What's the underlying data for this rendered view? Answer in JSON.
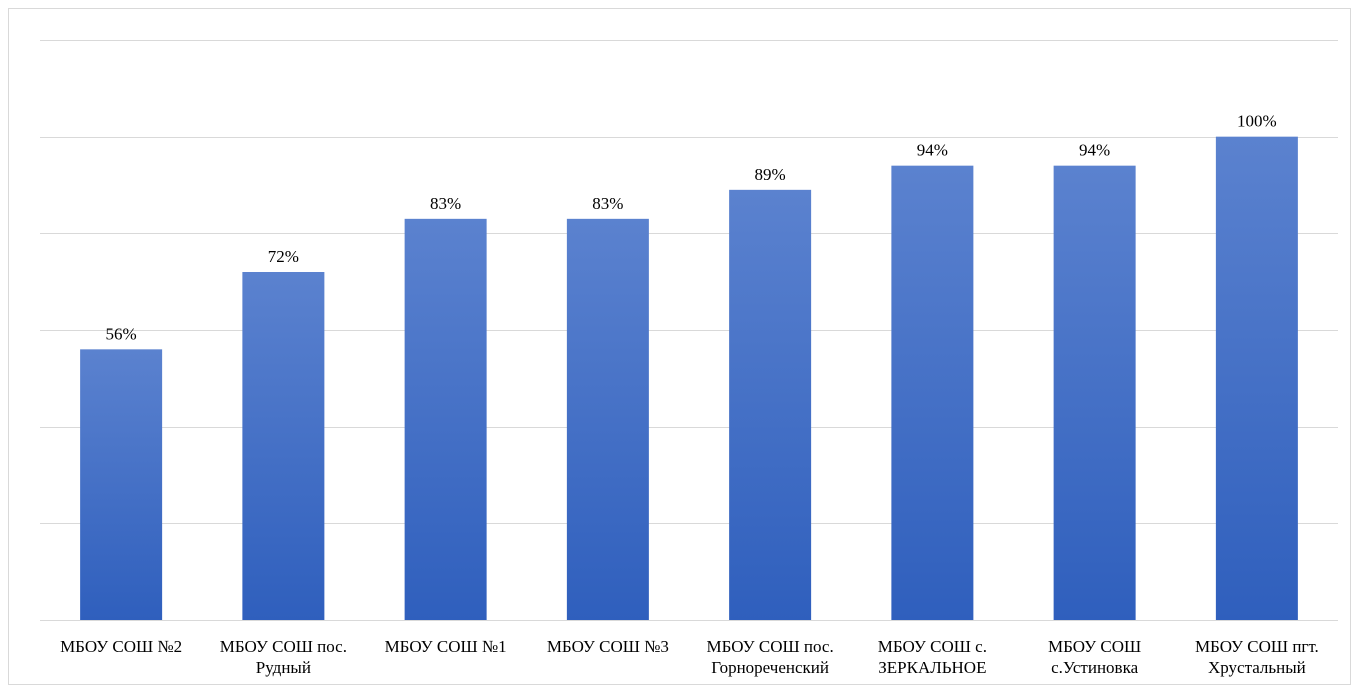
{
  "chart_data": {
    "type": "bar",
    "title": "",
    "xlabel": "",
    "ylabel": "",
    "ylim": [
      0,
      120
    ],
    "grid": true,
    "legend": "none",
    "y_axis_labels_visible": false,
    "bar_color_top": "#5b82cf",
    "bar_color_bottom": "#2f5fbd",
    "categories": [
      [
        "МБОУ СОШ №2"
      ],
      [
        "МБОУ СОШ пос.",
        "Рудный"
      ],
      [
        "МБОУ СОШ №1"
      ],
      [
        "МБОУ СОШ №3"
      ],
      [
        "МБОУ СОШ пос.",
        "Горнореченский"
      ],
      [
        "МБОУ СОШ с.",
        "ЗЕРКАЛЬНОЕ"
      ],
      [
        "МБОУ СОШ",
        "с.Устиновка"
      ],
      [
        "МБОУ СОШ пгт.",
        "Хрустальный"
      ]
    ],
    "values": [
      56,
      72,
      83,
      83,
      89,
      94,
      94,
      100
    ],
    "value_labels": [
      "56%",
      "72%",
      "83%",
      "83%",
      "89%",
      "94%",
      "94%",
      "100%"
    ]
  }
}
